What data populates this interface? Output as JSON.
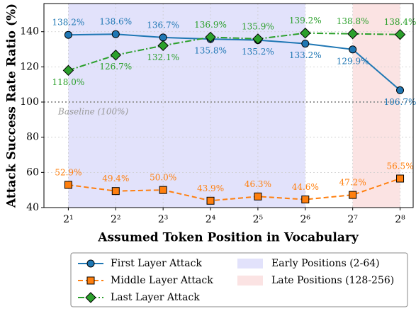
{
  "chart_data": {
    "type": "line",
    "ylabel": "Attack Success Rate Ratio (%)",
    "xlabel": "Assumed Token Position in Vocabulary",
    "x": [
      2,
      4,
      8,
      16,
      32,
      64,
      128,
      256
    ],
    "xscale": "log2",
    "xlim": [
      1.4,
      310
    ],
    "xticks": [
      {
        "value": 2,
        "label": "2¹"
      },
      {
        "value": 4,
        "label": "2²"
      },
      {
        "value": 8,
        "label": "2³"
      },
      {
        "value": 16,
        "label": "2⁴"
      },
      {
        "value": 32,
        "label": "2⁵"
      },
      {
        "value": 64,
        "label": "2⁶"
      },
      {
        "value": 128,
        "label": "2⁷"
      },
      {
        "value": 256,
        "label": "2⁸"
      }
    ],
    "ylim": [
      40,
      156
    ],
    "yticks": [
      40,
      60,
      80,
      100,
      120,
      140
    ],
    "grid": true,
    "series": [
      {
        "name": "First Layer Attack",
        "color": "#1f77b4",
        "marker": "circle",
        "linestyle": "solid",
        "values": [
          138.2,
          138.6,
          136.7,
          135.8,
          135.2,
          133.2,
          129.9,
          106.7
        ],
        "value_labels": [
          "138.2%",
          "138.6%",
          "136.7%",
          "135.8%",
          "135.2%",
          "133.2%",
          "129.9%",
          "106.7%"
        ]
      },
      {
        "name": "Middle Layer Attack",
        "color": "#ff7f0e",
        "marker": "square",
        "linestyle": "dashed",
        "values": [
          52.9,
          49.4,
          50.0,
          43.9,
          46.3,
          44.6,
          47.2,
          56.5
        ],
        "value_labels": [
          "52.9%",
          "49.4%",
          "50.0%",
          "43.9%",
          "46.3%",
          "44.6%",
          "47.2%",
          "56.5%"
        ]
      },
      {
        "name": "Last Layer Attack",
        "color": "#2ca02c",
        "marker": "diamond",
        "linestyle": "dashdot",
        "values": [
          118.0,
          126.7,
          132.1,
          136.9,
          135.9,
          139.2,
          138.8,
          138.4
        ],
        "value_labels": [
          "118.0%",
          "126.7%",
          "132.1%",
          "136.9%",
          "135.9%",
          "139.2%",
          "138.8%",
          "138.4%"
        ]
      }
    ],
    "spans": [
      {
        "name": "Early Positions (2-64)",
        "color": "#e2e2fb",
        "x": [
          2,
          64
        ]
      },
      {
        "name": "Late Positions (128-256)",
        "color": "#fbe3e3",
        "x": [
          128,
          256
        ]
      }
    ],
    "baseline": {
      "value": 100,
      "label": "Baseline (100%)",
      "color": "#999999"
    }
  }
}
